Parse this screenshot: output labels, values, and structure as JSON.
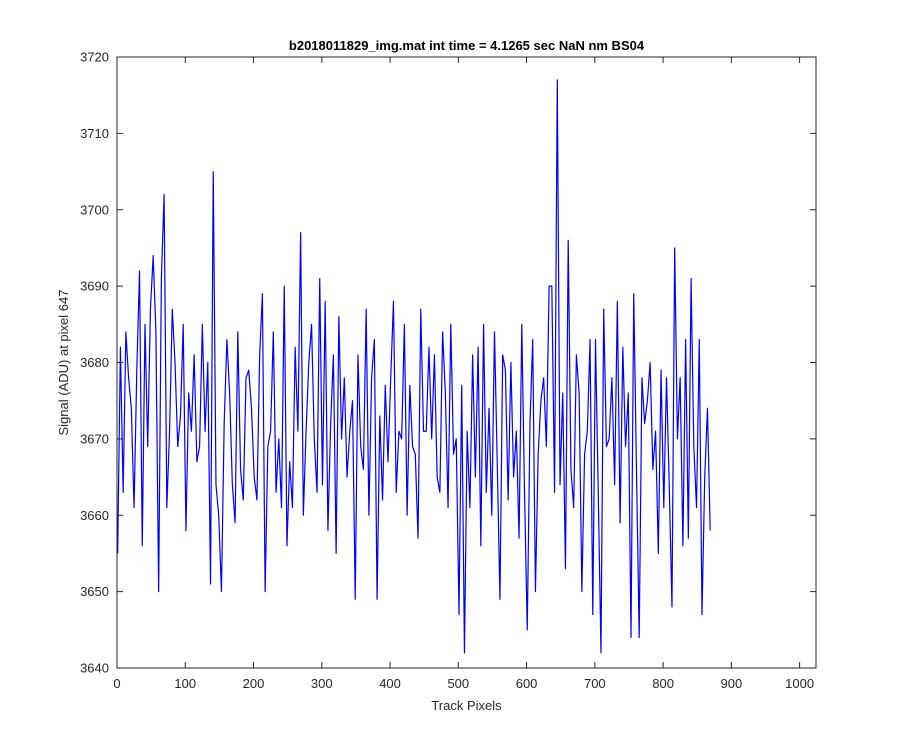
{
  "chart_data": {
    "type": "line",
    "title": "b2018011829_img.mat int time = 4.1265 sec  NaN nm BS04",
    "xlabel": "Track Pixels",
    "ylabel": "Signal (ADU) at pixel 647",
    "xlim": [
      0,
      1024
    ],
    "ylim": [
      3640,
      3720
    ],
    "xticks": [
      0,
      100,
      200,
      300,
      400,
      500,
      600,
      700,
      800,
      900,
      1000
    ],
    "yticks": [
      3640,
      3650,
      3660,
      3670,
      3680,
      3690,
      3700,
      3710,
      3720
    ],
    "grid": false,
    "line_color": "#0000ff",
    "series": [
      {
        "x_start": 1,
        "x_step": 4,
        "values": [
          3655,
          3682,
          3663,
          3684,
          3678,
          3674,
          3661,
          3679,
          3692,
          3656,
          3685,
          3669,
          3687,
          3694,
          3684,
          3650,
          3691,
          3702,
          3661,
          3671,
          3687,
          3680,
          3669,
          3673,
          3685,
          3658,
          3676,
          3671,
          3681,
          3667,
          3669,
          3685,
          3671,
          3680,
          3651,
          3705,
          3664,
          3660,
          3650,
          3672,
          3683,
          3676,
          3664,
          3659,
          3684,
          3666,
          3662,
          3678,
          3679,
          3674,
          3665,
          3662,
          3681,
          3689,
          3650,
          3669,
          3671,
          3684,
          3663,
          3670,
          3661,
          3690,
          3656,
          3667,
          3661,
          3682,
          3671,
          3697,
          3660,
          3671,
          3680,
          3685,
          3670,
          3663,
          3691,
          3664,
          3688,
          3658,
          3672,
          3681,
          3655,
          3686,
          3670,
          3678,
          3665,
          3671,
          3675,
          3649,
          3681,
          3669,
          3666,
          3687,
          3660,
          3678,
          3683,
          3649,
          3673,
          3662,
          3677,
          3667,
          3678,
          3688,
          3663,
          3671,
          3670,
          3685,
          3660,
          3677,
          3669,
          3668,
          3657,
          3687,
          3671,
          3671,
          3682,
          3670,
          3681,
          3665,
          3663,
          3684,
          3676,
          3661,
          3685,
          3668,
          3670,
          3647,
          3677,
          3642,
          3671,
          3661,
          3681,
          3665,
          3682,
          3656,
          3685,
          3663,
          3674,
          3660,
          3684,
          3667,
          3649,
          3681,
          3679,
          3662,
          3680,
          3665,
          3671,
          3657,
          3685,
          3663,
          3645,
          3672,
          3683,
          3650,
          3668,
          3675,
          3678,
          3669,
          3690,
          3690,
          3663,
          3717,
          3664,
          3676,
          3653,
          3696,
          3666,
          3661,
          3681,
          3676,
          3650,
          3668,
          3671,
          3683,
          3647,
          3683,
          3663,
          3642,
          3687,
          3669,
          3670,
          3678,
          3664,
          3688,
          3659,
          3682,
          3669,
          3676,
          3644,
          3689,
          3666,
          3644,
          3678,
          3672,
          3675,
          3680,
          3666,
          3671,
          3655,
          3679,
          3661,
          3678,
          3664,
          3648,
          3695,
          3670,
          3678,
          3656,
          3683,
          3657,
          3691,
          3669,
          3661,
          3683,
          3647,
          3665,
          3674,
          3658
        ]
      }
    ]
  }
}
